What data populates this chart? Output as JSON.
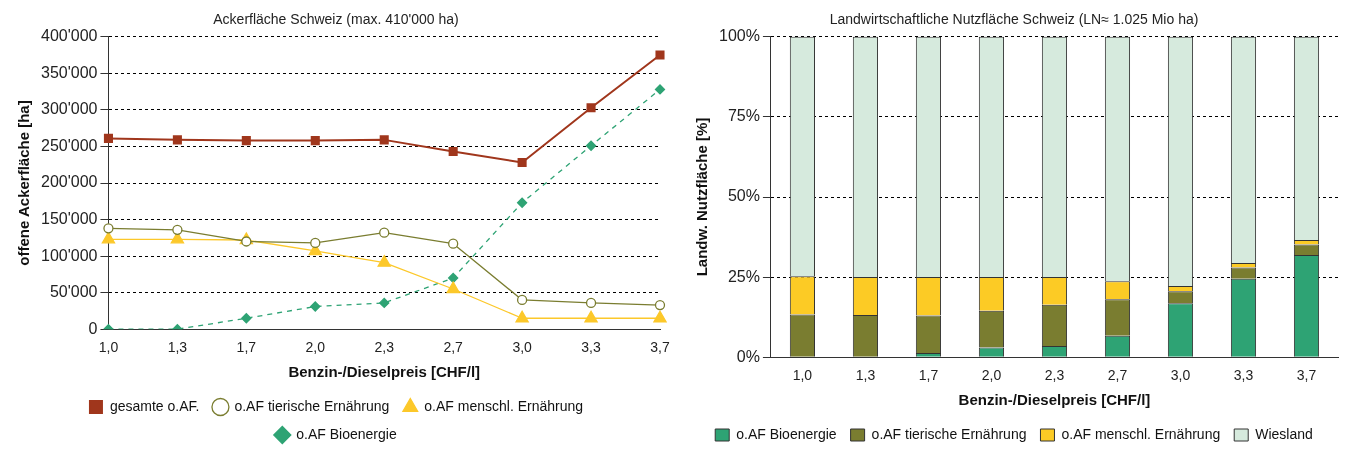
{
  "chart_data": [
    {
      "type": "line",
      "title": "Ackerfläche Schweiz (max. 410'000 ha)",
      "xlabel": "Benzin-/Dieselpreis [CHF/l]",
      "ylabel": "offene Ackerfläche [ha]",
      "categories": [
        "1,0",
        "1,3",
        "1,7",
        "2,0",
        "2,3",
        "2,7",
        "3,0",
        "3,3",
        "3,7"
      ],
      "series": [
        {
          "name": "gesamte o.AF.",
          "color": "#a0361c",
          "marker": "square",
          "line_style": "solid",
          "values": [
            261000,
            259000,
            258000,
            258000,
            259000,
            243000,
            228000,
            303000,
            375000
          ]
        },
        {
          "name": "o.AF tierische Ernährung",
          "color": "#7a7d30",
          "marker": "circle",
          "line_style": "solid",
          "values": [
            138000,
            136000,
            120000,
            118000,
            132000,
            117000,
            40000,
            36000,
            33000
          ]
        },
        {
          "name": "o.AF menschl. Ernährung",
          "color": "#fcc82a",
          "marker": "triangle",
          "line_style": "solid",
          "values": [
            123000,
            123000,
            122000,
            107000,
            91000,
            55000,
            15000,
            15000,
            15000
          ]
        },
        {
          "name": "o.AF Bioenergie",
          "color": "#2ea374",
          "marker": "diamond",
          "line_style": "dashed",
          "values": [
            0,
            0,
            15000,
            31000,
            36000,
            70000,
            173000,
            251000,
            328000
          ]
        }
      ],
      "ylim": [
        0,
        400000
      ],
      "yticks": [
        {
          "value": 0,
          "label": "0"
        },
        {
          "value": 50000,
          "label": "50'000"
        },
        {
          "value": 100000,
          "label": "100'000"
        },
        {
          "value": 150000,
          "label": "150'000"
        },
        {
          "value": 200000,
          "label": "200'000"
        },
        {
          "value": 250000,
          "label": "250'000"
        },
        {
          "value": 300000,
          "label": "300'000"
        },
        {
          "value": 350000,
          "label": "350'000"
        },
        {
          "value": 400000,
          "label": "400'000"
        }
      ],
      "grid": "y",
      "legend": "bottom"
    },
    {
      "type": "bar",
      "stacked": true,
      "title": "Landwirtschaftliche Nutzfläche Schweiz (LN≈ 1.025 Mio ha)",
      "xlabel": "Benzin-/Dieselpreis [CHF/l]",
      "ylabel": "Landw. Nutzfläche [%]",
      "categories": [
        "1,0",
        "1,3",
        "1,7",
        "2,0",
        "2,3",
        "2,7",
        "3,0",
        "3,3",
        "3,7"
      ],
      "series": [
        {
          "name": "o.AF Bioenergie",
          "color": "#2ea374",
          "values": [
            0,
            0,
            1.3,
            3.0,
            3.5,
            6.7,
            16.8,
            24.5,
            31.9
          ]
        },
        {
          "name": "o.AF tierische Ernährung",
          "color": "#7a7d30",
          "values": [
            13.3,
            13.2,
            11.7,
            11.5,
            12.9,
            11.4,
            3.8,
            3.5,
            3.3
          ]
        },
        {
          "name": "o.AF menschl. Ernährung",
          "color": "#fccb25",
          "values": [
            12.0,
            11.8,
            12.0,
            10.5,
            8.6,
            5.6,
            1.6,
            1.4,
            1.4
          ]
        },
        {
          "name": "Wiesland",
          "color": "#d6eadd",
          "values": [
            74.7,
            75.0,
            75.0,
            75.0,
            75.0,
            76.3,
            77.8,
            70.6,
            63.4
          ]
        }
      ],
      "ylim": [
        0,
        100
      ],
      "yticks": [
        {
          "value": 0,
          "label": "0%"
        },
        {
          "value": 25,
          "label": "25%"
        },
        {
          "value": 50,
          "label": "50%"
        },
        {
          "value": 75,
          "label": "75%"
        },
        {
          "value": 100,
          "label": "100%"
        }
      ],
      "grid": "y",
      "legend": "bottom"
    }
  ]
}
